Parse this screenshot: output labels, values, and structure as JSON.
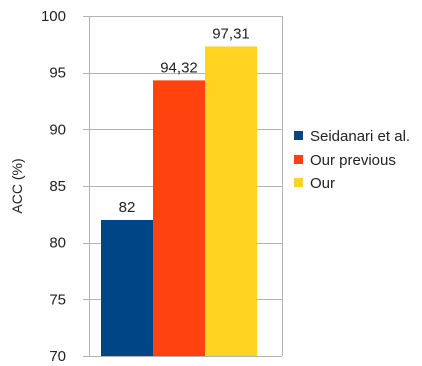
{
  "chart_data": {
    "type": "bar",
    "ylabel": "ACC (%)",
    "ylim": [
      70,
      100
    ],
    "yticks": [
      70,
      75,
      80,
      85,
      90,
      95,
      100
    ],
    "grid": true,
    "legend_position": "right",
    "series": [
      {
        "name": "Seidanari et al.",
        "value": 82,
        "label": "82",
        "color": "#004586"
      },
      {
        "name": "Our previous",
        "value": 94.32,
        "label": "94,32",
        "color": "#ff420e"
      },
      {
        "name": "Our",
        "value": 97.31,
        "label": "97,31",
        "color": "#ffd320"
      }
    ]
  }
}
